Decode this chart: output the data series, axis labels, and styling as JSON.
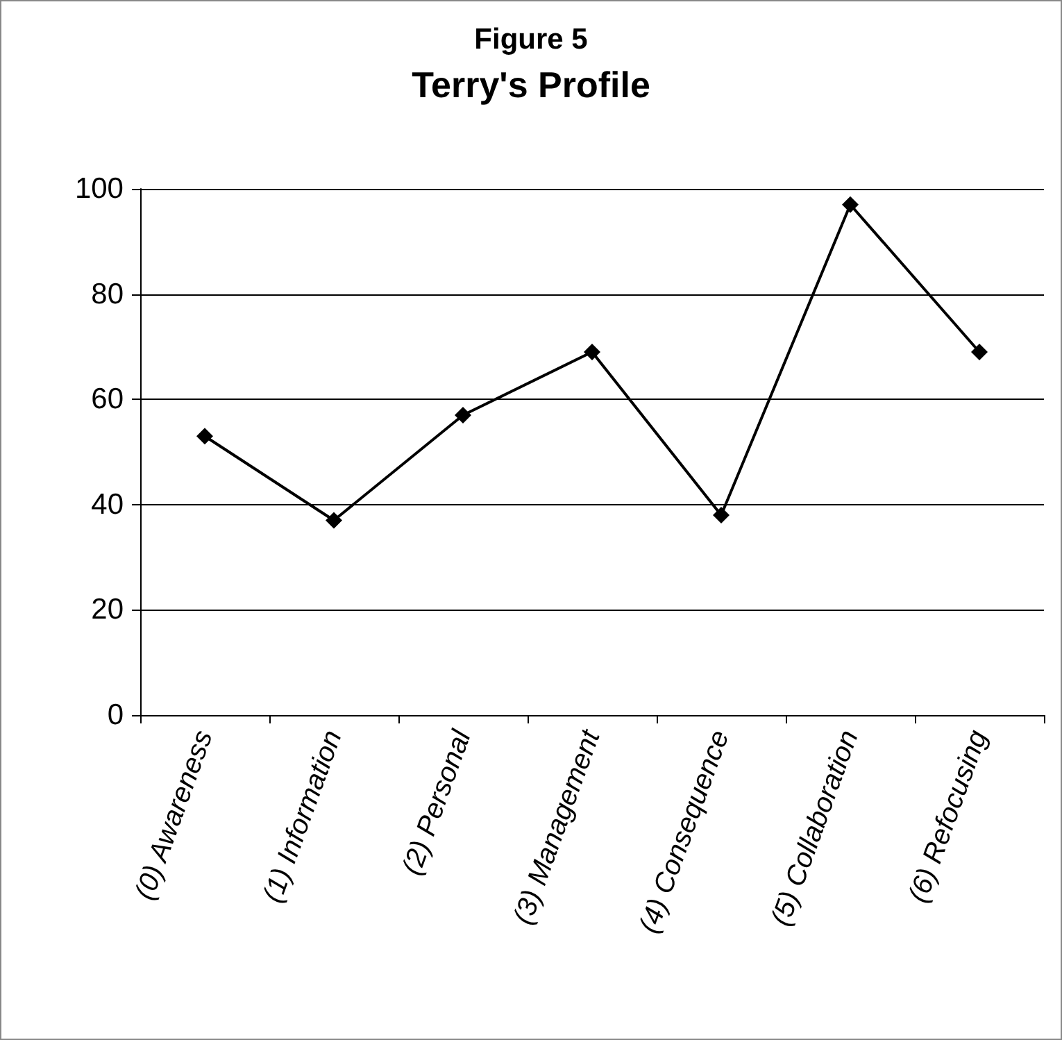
{
  "chart_data": {
    "type": "line",
    "title": "Figure 5",
    "subtitle": "Terry's Profile",
    "categories": [
      "(0) Awareness",
      "(1) Information",
      "(2) Personal",
      "(3) Management",
      "(4) Consequence",
      "(5) Collaboration",
      "(6) Refocusing"
    ],
    "series": [
      {
        "color": "#000000",
        "values": [
          53,
          37,
          57,
          69,
          38,
          97,
          69
        ]
      }
    ],
    "ylim": [
      0,
      100
    ],
    "yticks": [
      0,
      20,
      40,
      60,
      80,
      100
    ],
    "grid": "y",
    "marker": "diamond",
    "line_style": "solid"
  }
}
